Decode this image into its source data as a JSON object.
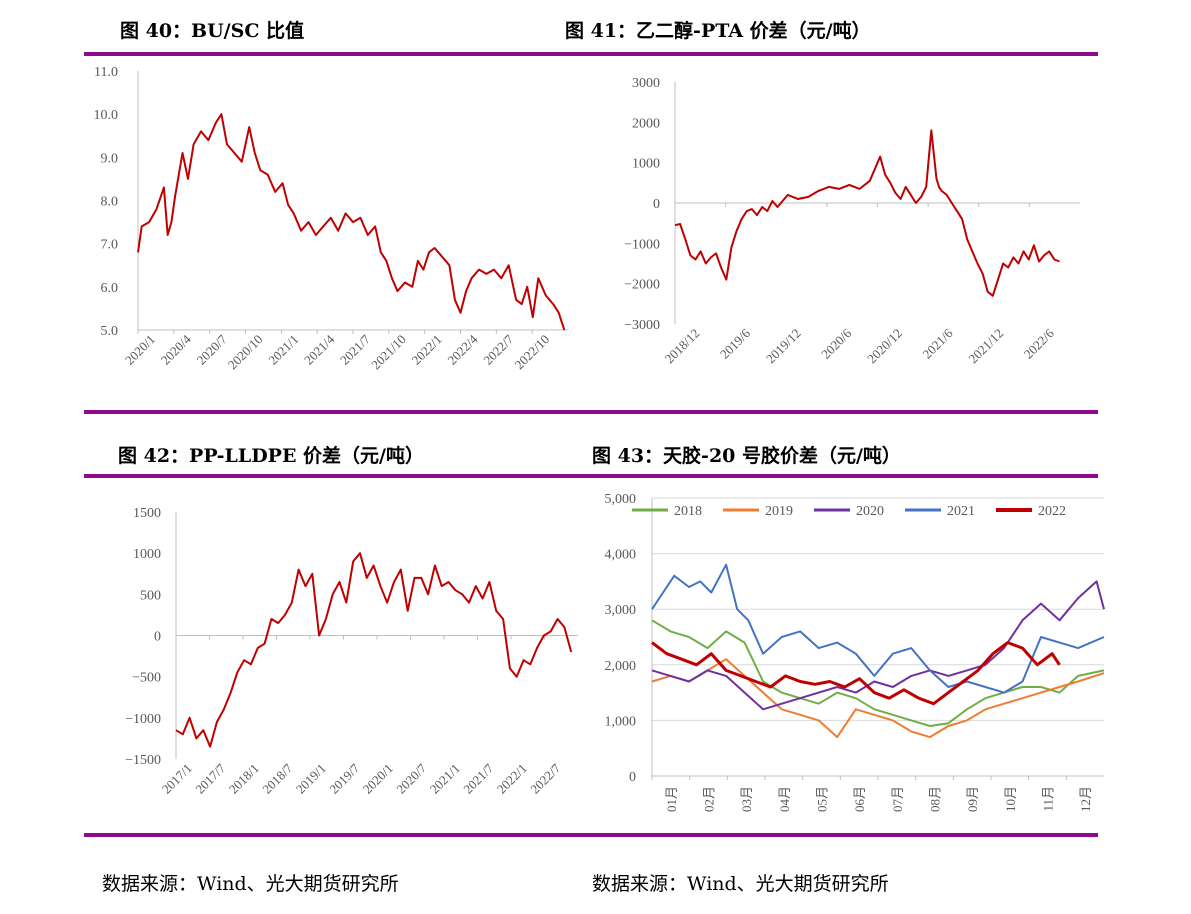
{
  "colors": {
    "rule": "#8e0a8c",
    "series_red": "#c00000",
    "axis": "#bfbfbf",
    "text": "#595959"
  },
  "captions": {
    "c40": "图 40：BU/SC 比值",
    "c41": "图 41：乙二醇-PTA 价差（元/吨）",
    "c42": "图 42：PP-LLDPE 价差（元/吨）",
    "c43": "图 43：天胶-20 号胶价差（元/吨）"
  },
  "sources": {
    "left": "数据来源：Wind、光大期货研究所",
    "right": "数据来源：Wind、光大期货研究所"
  },
  "chart_data": [
    {
      "id": "c40",
      "type": "line",
      "title": "BU/SC 比值",
      "ylim": [
        5.0,
        11.0
      ],
      "yticks": [
        "5.0",
        "6.0",
        "7.0",
        "8.0",
        "9.0",
        "10.0",
        "11.0"
      ],
      "xticks": [
        "2020/1",
        "2020/4",
        "2020/7",
        "2020/10",
        "2021/1",
        "2021/4",
        "2021/7",
        "2021/10",
        "2022/1",
        "2022/4",
        "2022/7",
        "2022/10"
      ],
      "xlim": [
        0,
        11.6
      ],
      "series": [
        {
          "name": "BU/SC",
          "color": "#c00000",
          "x": [
            0,
            0.1,
            0.3,
            0.5,
            0.7,
            0.8,
            0.9,
            1.0,
            1.1,
            1.2,
            1.35,
            1.5,
            1.7,
            1.9,
            2.1,
            2.25,
            2.4,
            2.6,
            2.8,
            3.0,
            3.15,
            3.3,
            3.5,
            3.7,
            3.9,
            4.05,
            4.2,
            4.4,
            4.6,
            4.8,
            5.0,
            5.2,
            5.4,
            5.6,
            5.8,
            6.0,
            6.2,
            6.4,
            6.55,
            6.7,
            6.85,
            7.0,
            7.2,
            7.4,
            7.55,
            7.7,
            7.85,
            8.0,
            8.2,
            8.4,
            8.55,
            8.7,
            8.85,
            9.0,
            9.2,
            9.4,
            9.6,
            9.8,
            10.0,
            10.2,
            10.35,
            10.5,
            10.65,
            10.8,
            11.0,
            11.2,
            11.35,
            11.5
          ],
          "values": [
            6.8,
            7.4,
            7.5,
            7.8,
            8.3,
            7.2,
            7.5,
            8.1,
            8.6,
            9.1,
            8.5,
            9.3,
            9.6,
            9.4,
            9.8,
            10.0,
            9.3,
            9.1,
            8.9,
            9.7,
            9.1,
            8.7,
            8.6,
            8.2,
            8.4,
            7.9,
            7.7,
            7.3,
            7.5,
            7.2,
            7.4,
            7.6,
            7.3,
            7.7,
            7.5,
            7.6,
            7.2,
            7.4,
            6.8,
            6.6,
            6.2,
            5.9,
            6.1,
            6.0,
            6.6,
            6.4,
            6.8,
            6.9,
            6.7,
            6.5,
            5.7,
            5.4,
            5.9,
            6.2,
            6.4,
            6.3,
            6.4,
            6.2,
            6.5,
            5.7,
            5.6,
            6.0,
            5.3,
            6.2,
            5.8,
            5.6,
            5.4,
            5.0
          ]
        }
      ]
    },
    {
      "id": "c41",
      "type": "line",
      "title": "乙二醇-PTA 价差（元/吨）",
      "ylim": [
        -3000,
        3000
      ],
      "yticks": [
        "−3000",
        "−2000",
        "−1000",
        "0",
        "1000",
        "2000",
        "3000"
      ],
      "xticks": [
        "2018/12",
        "2019/6",
        "2019/12",
        "2020/6",
        "2020/12",
        "2021/6",
        "2021/12",
        "2022/6"
      ],
      "xlim": [
        0,
        7.9
      ],
      "series": [
        {
          "name": "乙二醇-PTA",
          "color": "#c00000",
          "x": [
            0,
            0.1,
            0.2,
            0.3,
            0.4,
            0.5,
            0.6,
            0.7,
            0.8,
            0.9,
            1.0,
            1.1,
            1.2,
            1.3,
            1.4,
            1.5,
            1.6,
            1.7,
            1.8,
            1.9,
            2.0,
            2.2,
            2.4,
            2.6,
            2.8,
            3.0,
            3.2,
            3.4,
            3.6,
            3.8,
            4.0,
            4.1,
            4.2,
            4.3,
            4.4,
            4.5,
            4.6,
            4.7,
            4.8,
            4.9,
            5.0,
            5.1,
            5.15,
            5.2,
            5.3,
            5.4,
            5.5,
            5.6,
            5.7,
            5.8,
            5.9,
            6.0,
            6.1,
            6.2,
            6.3,
            6.4,
            6.5,
            6.6,
            6.7,
            6.8,
            6.9,
            7.0,
            7.1,
            7.2,
            7.3,
            7.4,
            7.5
          ],
          "values": [
            -550,
            -520,
            -900,
            -1300,
            -1400,
            -1200,
            -1500,
            -1350,
            -1250,
            -1600,
            -1900,
            -1100,
            -700,
            -400,
            -200,
            -150,
            -300,
            -100,
            -200,
            50,
            -100,
            200,
            100,
            150,
            300,
            400,
            350,
            450,
            350,
            550,
            1150,
            700,
            500,
            250,
            100,
            400,
            200,
            0,
            150,
            400,
            1800,
            600,
            400,
            300,
            200,
            0,
            -200,
            -400,
            -900,
            -1200,
            -1500,
            -1750,
            -2200,
            -2300,
            -1900,
            -1500,
            -1600,
            -1350,
            -1500,
            -1200,
            -1400,
            -1050,
            -1450,
            -1300,
            -1200,
            -1400,
            -1450
          ]
        }
      ]
    },
    {
      "id": "c42",
      "type": "line",
      "title": "PP-LLDPE 价差（元/吨）",
      "ylim": [
        -1500,
        1500
      ],
      "yticks": [
        "−1500",
        "−1000",
        "−500",
        "0",
        "500",
        "1000",
        "1500"
      ],
      "xticks": [
        "2017/1",
        "2017/7",
        "2018/1",
        "2018/7",
        "2019/1",
        "2019/7",
        "2020/1",
        "2020/7",
        "2021/1",
        "2021/7",
        "2022/1",
        "2022/7"
      ],
      "xlim": [
        0,
        11.8
      ],
      "series": [
        {
          "name": "PP-LLDPE",
          "color": "#c00000",
          "x": [
            0,
            0.2,
            0.4,
            0.6,
            0.8,
            1.0,
            1.2,
            1.4,
            1.6,
            1.8,
            2.0,
            2.2,
            2.4,
            2.6,
            2.8,
            3.0,
            3.2,
            3.4,
            3.6,
            3.8,
            4.0,
            4.2,
            4.4,
            4.6,
            4.8,
            5.0,
            5.2,
            5.4,
            5.6,
            5.8,
            6.0,
            6.2,
            6.4,
            6.6,
            6.8,
            7.0,
            7.2,
            7.4,
            7.6,
            7.8,
            8.0,
            8.2,
            8.4,
            8.6,
            8.8,
            9.0,
            9.2,
            9.4,
            9.6,
            9.8,
            10.0,
            10.2,
            10.4,
            10.6,
            10.8,
            11.0,
            11.2,
            11.4,
            11.6
          ],
          "values": [
            -1150,
            -1200,
            -1000,
            -1250,
            -1150,
            -1350,
            -1050,
            -900,
            -700,
            -450,
            -300,
            -350,
            -150,
            -100,
            200,
            150,
            250,
            400,
            800,
            600,
            750,
            0,
            200,
            500,
            650,
            400,
            900,
            1000,
            700,
            850,
            600,
            400,
            650,
            800,
            300,
            700,
            700,
            500,
            850,
            600,
            650,
            550,
            500,
            400,
            600,
            450,
            650,
            300,
            200,
            -400,
            -500,
            -300,
            -350,
            -150,
            0,
            50,
            200,
            100,
            -200
          ]
        }
      ]
    },
    {
      "id": "c43",
      "type": "line",
      "title": "天胶-20 号胶价差（元/吨）",
      "ylim": [
        0,
        5000
      ],
      "yticks": [
        "0",
        "1,000",
        "2,000",
        "3,000",
        "4,000",
        "5,000"
      ],
      "xticks": [
        "01月",
        "02月",
        "03月",
        "04月",
        "05月",
        "06月",
        "07月",
        "08月",
        "09月",
        "10月",
        "11月",
        "12月"
      ],
      "xlim": [
        0,
        12.2
      ],
      "legend": [
        "2018",
        "2019",
        "2020",
        "2021",
        "2022"
      ],
      "series": [
        {
          "name": "2018",
          "color": "#70ad47",
          "x": [
            0,
            0.5,
            1,
            1.5,
            2,
            2.5,
            3,
            3.5,
            4,
            4.5,
            5,
            5.5,
            6,
            6.5,
            7,
            7.5,
            8,
            8.5,
            9,
            9.5,
            10,
            10.5,
            11,
            11.5,
            12.2
          ],
          "values": [
            2800,
            2600,
            2500,
            2300,
            2600,
            2400,
            1700,
            1500,
            1400,
            1300,
            1500,
            1400,
            1200,
            1100,
            1000,
            900,
            950,
            1200,
            1400,
            1500,
            1600,
            1600,
            1500,
            1800,
            1900
          ]
        },
        {
          "name": "2019",
          "color": "#ed7d31",
          "x": [
            0,
            0.5,
            1,
            1.5,
            2,
            2.5,
            3,
            3.5,
            4,
            4.5,
            5,
            5.5,
            6,
            6.5,
            7,
            7.5,
            8,
            8.5,
            9,
            9.5,
            10,
            10.5,
            11,
            11.5,
            12.2
          ],
          "values": [
            1700,
            1800,
            1700,
            1900,
            2100,
            1800,
            1500,
            1200,
            1100,
            1000,
            700,
            1200,
            1100,
            1000,
            800,
            700,
            900,
            1000,
            1200,
            1300,
            1400,
            1500,
            1600,
            1700,
            1850
          ]
        },
        {
          "name": "2020",
          "color": "#7030a0",
          "x": [
            0,
            0.5,
            1,
            1.5,
            2,
            2.5,
            3,
            3.5,
            4,
            4.5,
            5,
            5.5,
            6,
            6.5,
            7,
            7.5,
            8,
            8.5,
            9,
            9.5,
            10,
            10.5,
            11,
            11.5,
            12,
            12.2
          ],
          "values": [
            1900,
            1800,
            1700,
            1900,
            1800,
            1500,
            1200,
            1300,
            1400,
            1500,
            1600,
            1500,
            1700,
            1600,
            1800,
            1900,
            1800,
            1900,
            2000,
            2300,
            2800,
            3100,
            2800,
            3200,
            3500,
            3000
          ]
        },
        {
          "name": "2021",
          "color": "#4472c4",
          "x": [
            0,
            0.3,
            0.6,
            1,
            1.3,
            1.6,
            2,
            2.3,
            2.6,
            3,
            3.5,
            4,
            4.5,
            5,
            5.5,
            6,
            6.5,
            7,
            7.5,
            8,
            8.5,
            9,
            9.5,
            10,
            10.5,
            11,
            11.5,
            12.2
          ],
          "values": [
            3000,
            3300,
            3600,
            3400,
            3500,
            3300,
            3800,
            3000,
            2800,
            2200,
            2500,
            2600,
            2300,
            2400,
            2200,
            1800,
            2200,
            2300,
            1900,
            1600,
            1700,
            1600,
            1500,
            1700,
            2500,
            2400,
            2300,
            2500
          ]
        },
        {
          "name": "2022",
          "color": "#c00000",
          "thick": true,
          "x": [
            0,
            0.4,
            0.8,
            1.2,
            1.6,
            2,
            2.4,
            2.8,
            3.2,
            3.6,
            4,
            4.4,
            4.8,
            5.2,
            5.6,
            6,
            6.4,
            6.8,
            7.2,
            7.6,
            8,
            8.4,
            8.8,
            9.2,
            9.6,
            10,
            10.4,
            10.8,
            11.0
          ],
          "values": [
            2400,
            2200,
            2100,
            2000,
            2200,
            1900,
            1800,
            1700,
            1600,
            1800,
            1700,
            1650,
            1700,
            1600,
            1750,
            1500,
            1400,
            1550,
            1400,
            1300,
            1500,
            1700,
            1900,
            2200,
            2400,
            2300,
            2000,
            2200,
            2000
          ]
        }
      ]
    }
  ]
}
